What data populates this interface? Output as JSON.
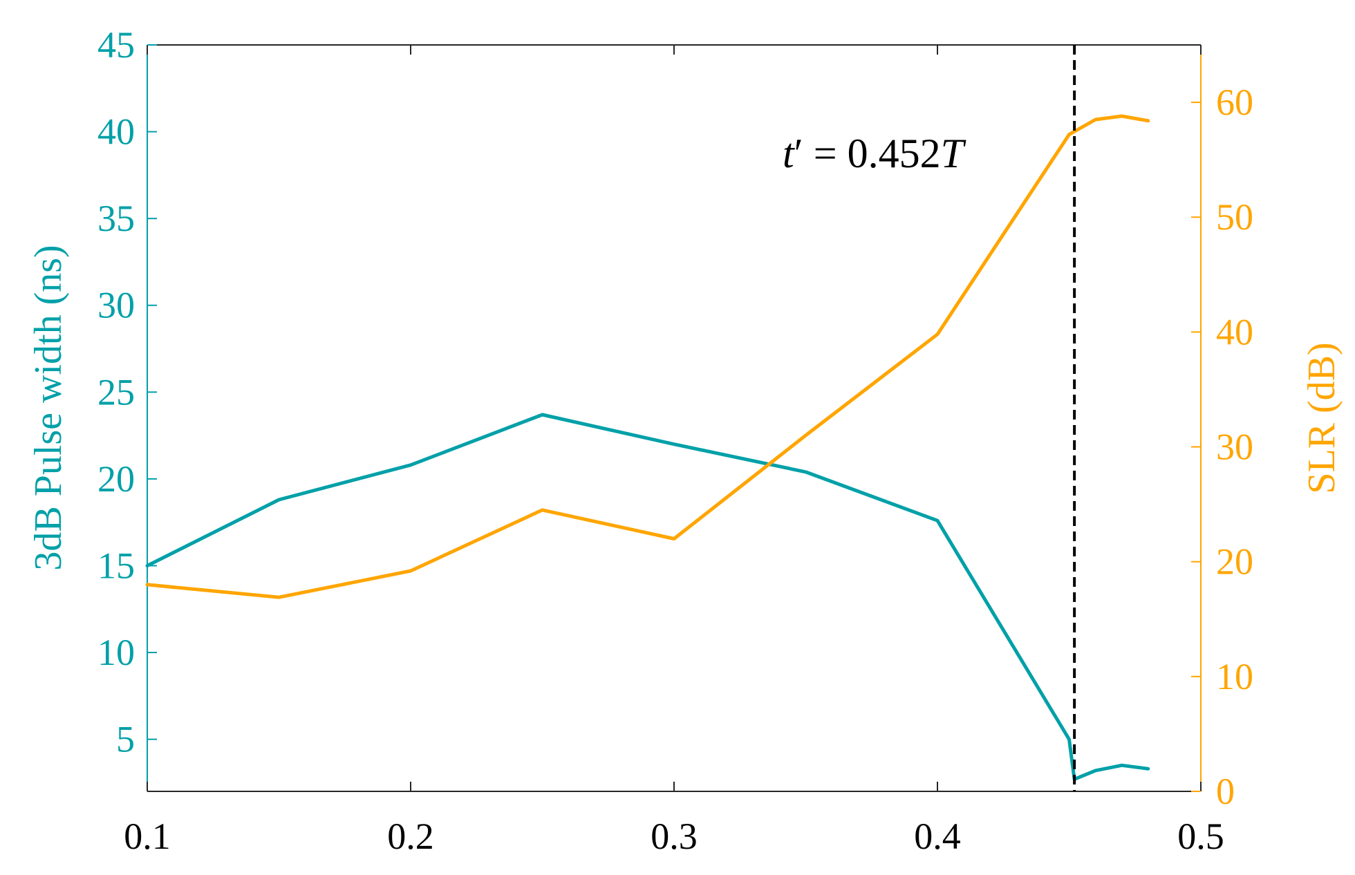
{
  "chart_data": {
    "type": "line",
    "title": "",
    "xlabel": "",
    "ylabel_left": "3dB Pulse width (ns)",
    "ylabel_right": "SLR (dB)",
    "xlim": [
      0.1,
      0.5
    ],
    "ylim_left": [
      2,
      45
    ],
    "ylim_right": [
      0,
      65
    ],
    "x_ticks": [
      "0.1",
      "0.2",
      "0.3",
      "0.4",
      "0.5"
    ],
    "y_left_ticks": [
      "5",
      "10",
      "15",
      "20",
      "25",
      "30",
      "35",
      "40",
      "45"
    ],
    "y_right_ticks": [
      "0",
      "10",
      "20",
      "30",
      "40",
      "50",
      "60"
    ],
    "grid": false,
    "colors": {
      "left": "#00A0A8",
      "right": "#FFA500",
      "marker": "#000000"
    },
    "series": [
      {
        "axis": "left",
        "x": [
          0.1,
          0.15,
          0.2,
          0.25,
          0.3,
          0.35,
          0.4,
          0.45,
          0.452,
          0.46,
          0.47,
          0.48
        ],
        "values": [
          15.0,
          18.8,
          20.8,
          23.7,
          22.0,
          20.4,
          17.6,
          5.0,
          2.7,
          3.2,
          3.5,
          3.3
        ]
      },
      {
        "axis": "right",
        "x": [
          0.1,
          0.15,
          0.2,
          0.25,
          0.3,
          0.35,
          0.4,
          0.45,
          0.46,
          0.47,
          0.48
        ],
        "values": [
          18.0,
          16.9,
          19.2,
          24.5,
          22.0,
          31.0,
          39.8,
          57.2,
          58.5,
          58.8,
          58.4
        ]
      }
    ],
    "vline": {
      "x": 0.452,
      "style": "dashed"
    },
    "annotation": {
      "prefix": "t",
      "prime": "′",
      "equals": " = 0.452",
      "suffix": "T"
    }
  }
}
